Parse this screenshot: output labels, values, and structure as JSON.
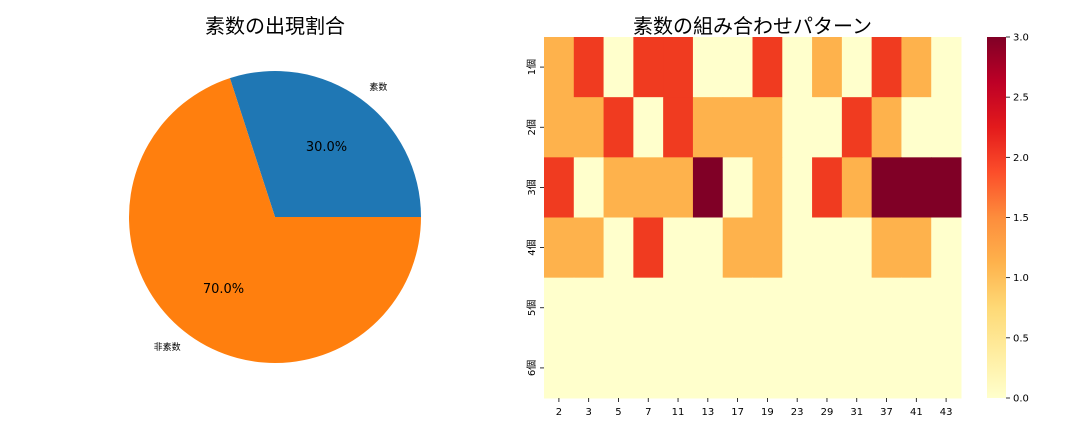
{
  "chart_data": [
    {
      "type": "pie",
      "title": "素数の出現割合",
      "labels": [
        "素数",
        "非素数"
      ],
      "values": [
        30.0,
        70.0
      ],
      "pct_labels": [
        "30.0%",
        "70.0%"
      ],
      "colors": [
        "#1f77b4",
        "#ff7f0e"
      ],
      "start_angle_deg": 0
    },
    {
      "type": "heatmap",
      "title": "素数の組み合わせパターン",
      "x_labels": [
        "2",
        "3",
        "5",
        "7",
        "11",
        "13",
        "17",
        "19",
        "23",
        "29",
        "31",
        "37",
        "41",
        "43"
      ],
      "y_labels": [
        "1個",
        "2個",
        "3個",
        "4個",
        "5個",
        "6個"
      ],
      "values": [
        [
          1,
          2,
          0,
          2,
          2,
          0,
          0,
          2,
          0,
          1,
          0,
          2,
          1,
          0
        ],
        [
          1,
          1,
          2,
          0,
          2,
          1,
          1,
          1,
          0,
          0,
          2,
          1,
          0,
          0
        ],
        [
          2,
          0,
          1,
          1,
          1,
          3,
          0,
          1,
          0,
          2,
          1,
          3,
          3,
          3
        ],
        [
          1,
          1,
          0,
          2,
          0,
          0,
          1,
          1,
          0,
          0,
          0,
          1,
          1,
          0
        ],
        [
          0,
          0,
          0,
          0,
          0,
          0,
          0,
          0,
          0,
          0,
          0,
          0,
          0,
          0
        ],
        [
          0,
          0,
          0,
          0,
          0,
          0,
          0,
          0,
          0,
          0,
          0,
          0,
          0,
          0
        ]
      ],
      "colormap": "YlOrRd",
      "value_colors": {
        "0": "#ffffcc",
        "1": "#feb24c",
        "2": "#f03b20",
        "3": "#800026"
      },
      "colorbar": {
        "vmin": 0.0,
        "vmax": 3.0,
        "ticks": [
          "0.0",
          "0.5",
          "1.0",
          "1.5",
          "2.0",
          "2.5",
          "3.0"
        ]
      }
    }
  ]
}
